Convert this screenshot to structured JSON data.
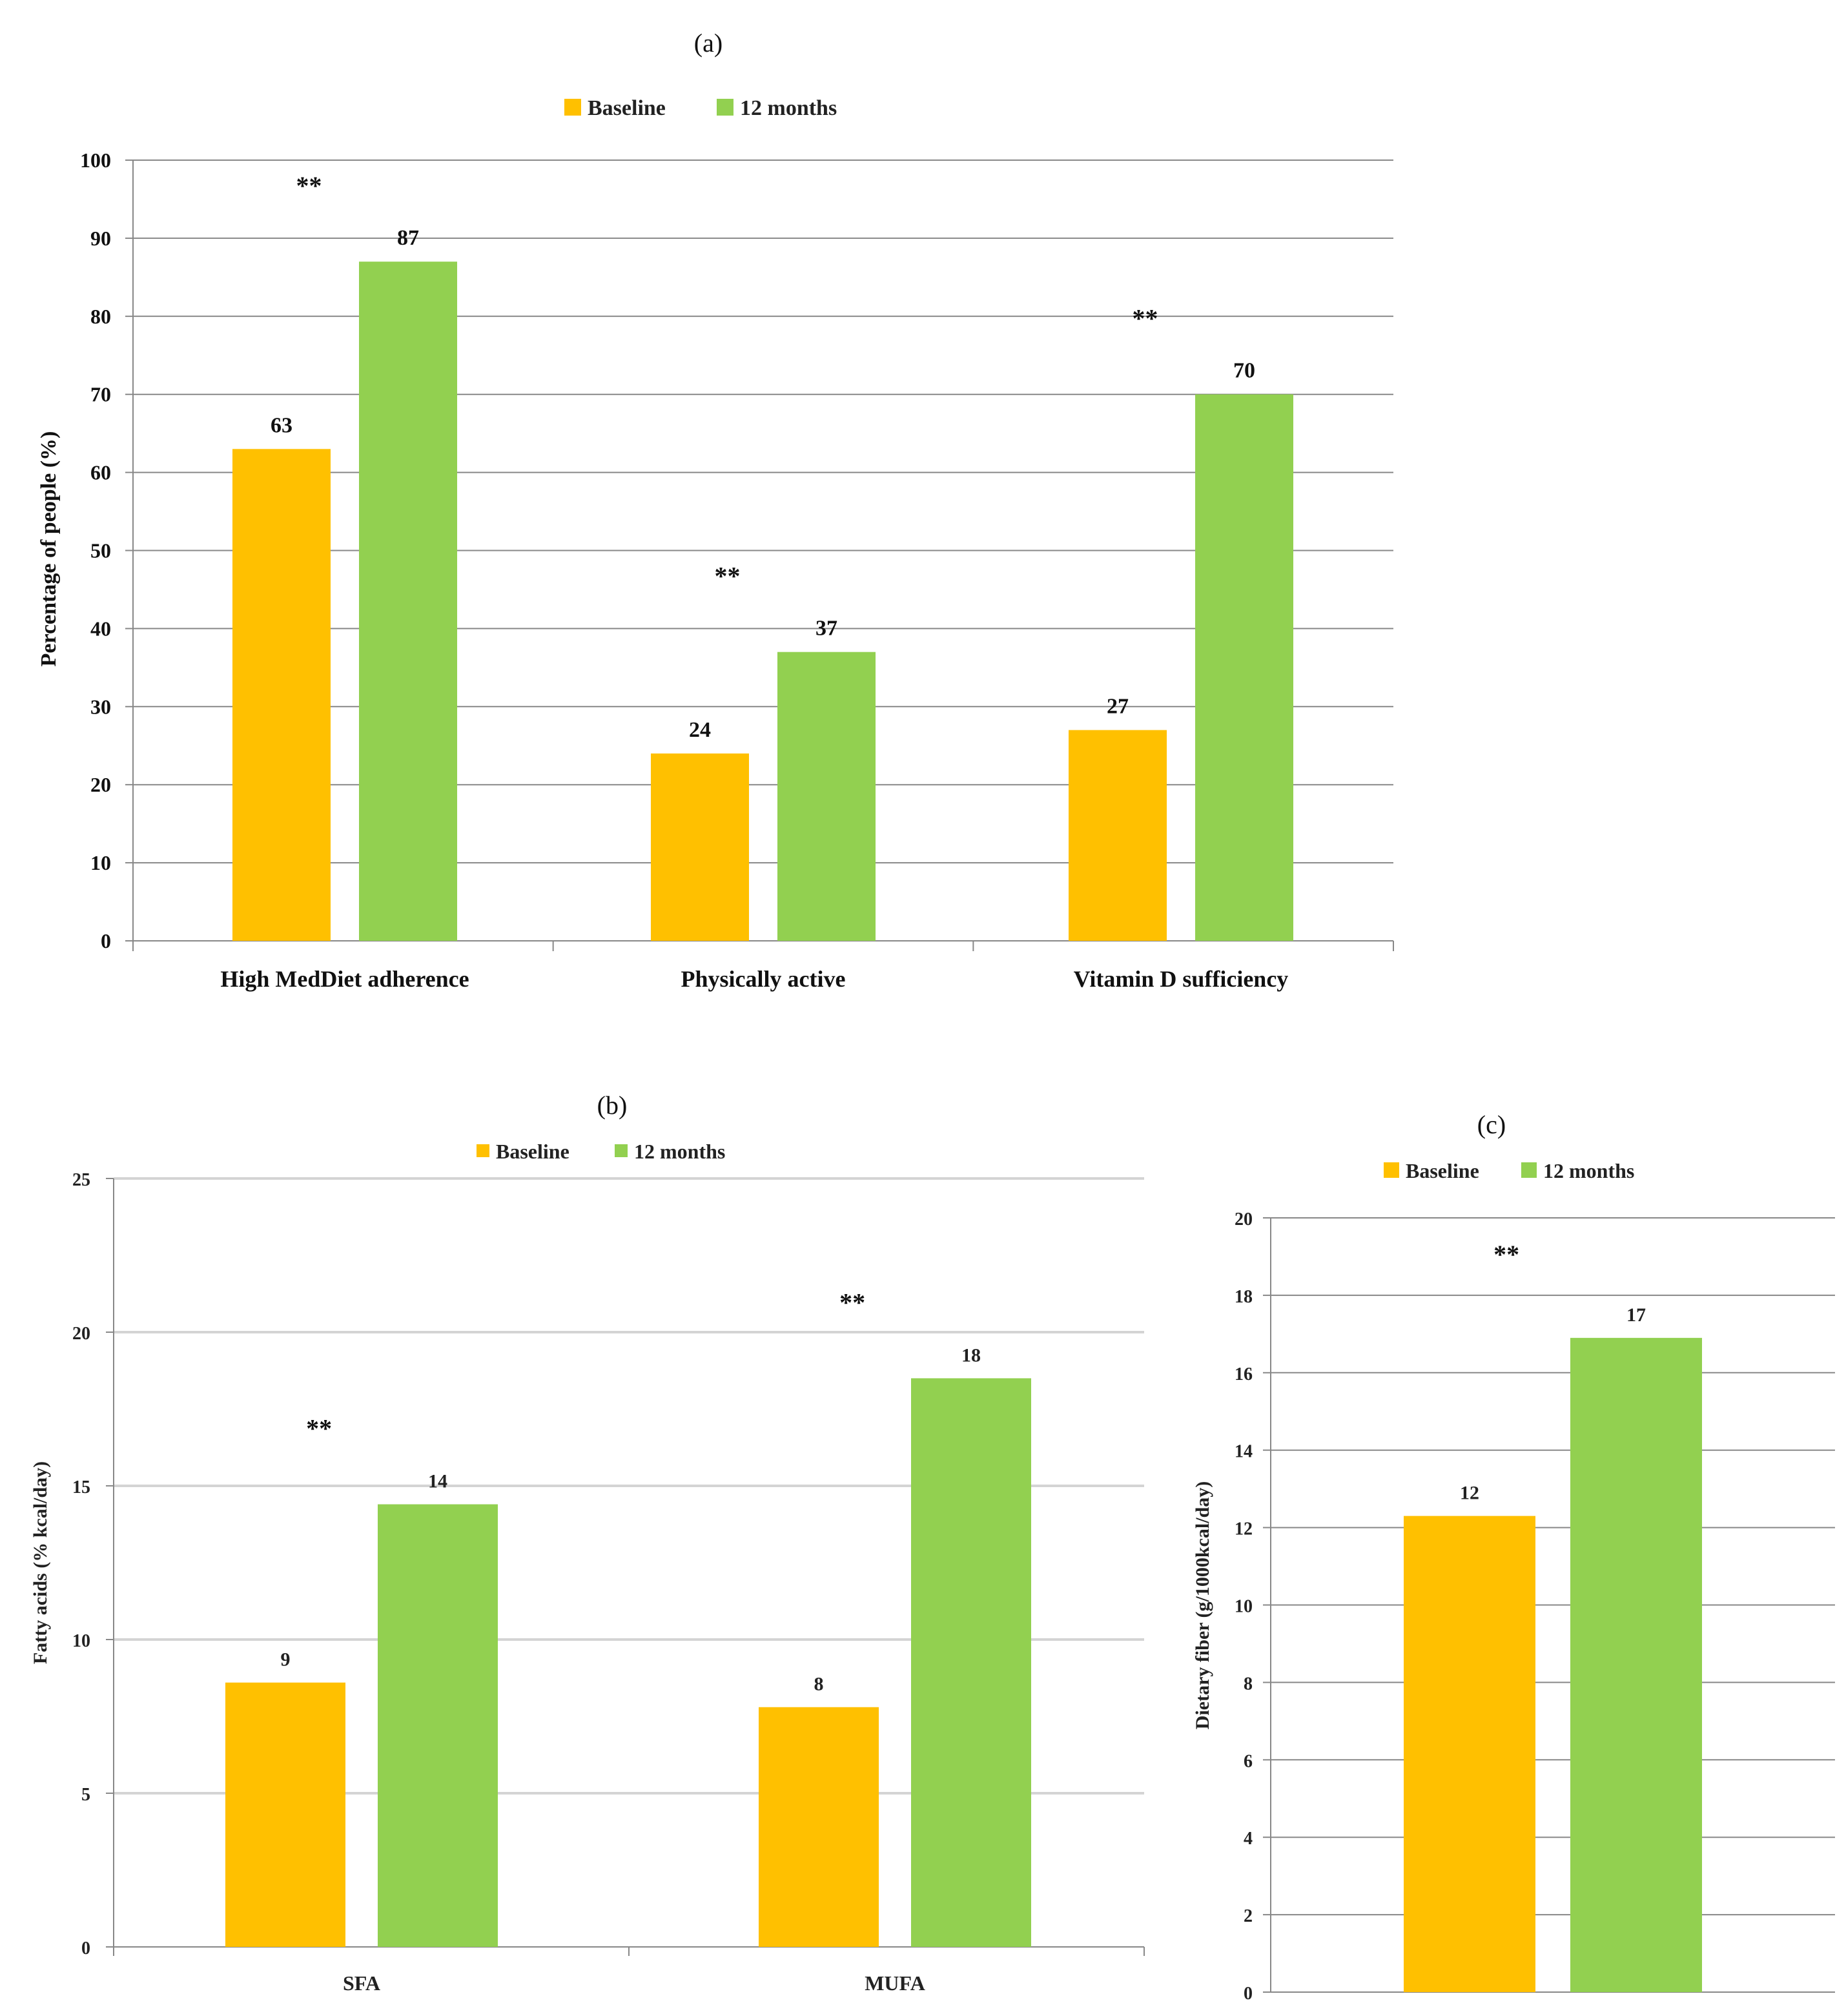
{
  "colors": {
    "baseline": "#FFC000",
    "months12": "#92D050",
    "grid": "#888888",
    "grid_light": "#d4d4d4",
    "axis": "#888888",
    "text": "#111111"
  },
  "chart_data": [
    {
      "id": "a",
      "type": "bar",
      "title": "(a)",
      "legend": [
        "Baseline",
        "12 months"
      ],
      "categories": [
        "High MedDiet adherence",
        "Physically active",
        "Vitamin D sufficiency"
      ],
      "series": [
        {
          "name": "Baseline",
          "values": [
            63,
            24,
            27
          ]
        },
        {
          "name": "12 months",
          "values": [
            87,
            37,
            70
          ]
        }
      ],
      "data_labels": [
        [
          "63",
          "24",
          "27"
        ],
        [
          "87",
          "37",
          "70"
        ]
      ],
      "significance": [
        "**",
        "**",
        "**"
      ],
      "xlabel": "",
      "ylabel": "Percentage of people (%)",
      "ylim": [
        0,
        100
      ],
      "yticks": [
        "0",
        "10",
        "20",
        "30",
        "40",
        "50",
        "60",
        "70",
        "80",
        "90",
        "100"
      ]
    },
    {
      "id": "b",
      "type": "bar",
      "title": "(b)",
      "legend": [
        "Baseline",
        "12 months"
      ],
      "categories": [
        "SFA",
        "MUFA"
      ],
      "series": [
        {
          "name": "Baseline",
          "values": [
            8.6,
            7.8
          ]
        },
        {
          "name": "12 months",
          "values": [
            14.4,
            18.5
          ]
        }
      ],
      "data_labels": [
        [
          "9",
          "8"
        ],
        [
          "14",
          "18"
        ]
      ],
      "significance": [
        "**",
        "**"
      ],
      "xlabel": "",
      "ylabel": "Fatty acids (% kcal/day)",
      "ylim": [
        0,
        25
      ],
      "yticks": [
        "0",
        "5",
        "10",
        "15",
        "20",
        "25"
      ]
    },
    {
      "id": "c",
      "type": "bar",
      "title": "(c)",
      "legend": [
        "Baseline",
        "12 months"
      ],
      "categories": [
        ""
      ],
      "series": [
        {
          "name": "Baseline",
          "values": [
            12.3
          ]
        },
        {
          "name": "12 months",
          "values": [
            16.9
          ]
        }
      ],
      "data_labels": [
        [
          "12"
        ],
        [
          "17"
        ]
      ],
      "significance": [
        "**"
      ],
      "xlabel": "",
      "ylabel": "Dietary fiber (g/1000kcal/day)",
      "ylim": [
        0,
        20
      ],
      "yticks": [
        "0",
        "2",
        "4",
        "6",
        "8",
        "10",
        "12",
        "14",
        "16",
        "18",
        "20"
      ]
    }
  ]
}
